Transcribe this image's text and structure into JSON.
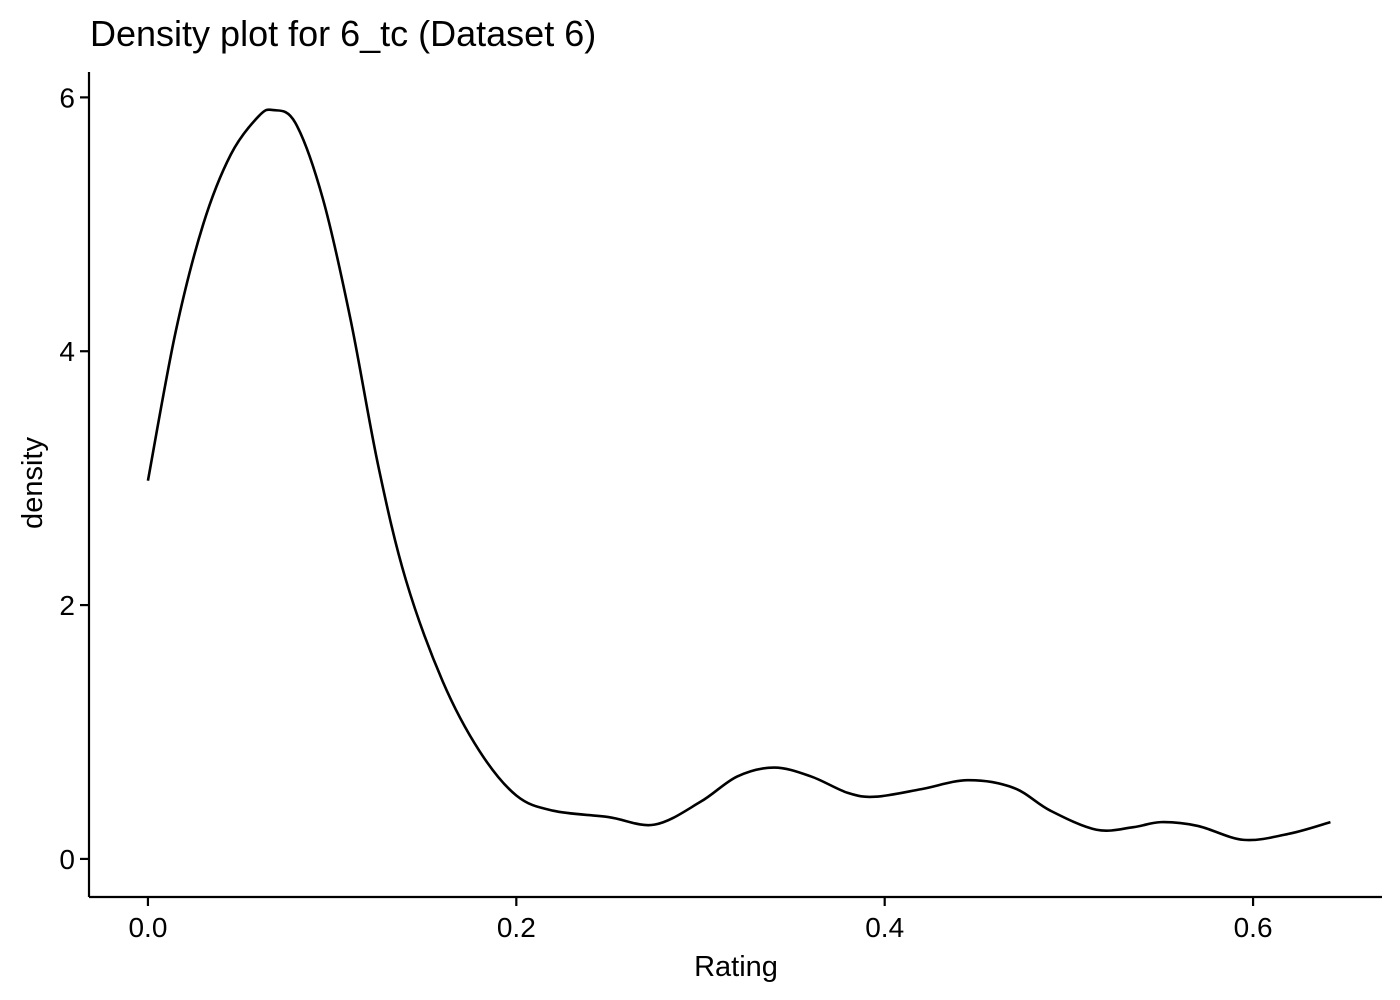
{
  "chart_data": {
    "type": "line",
    "title": "Density plot for 6_tc (Dataset 6)",
    "xlabel": "Rating",
    "ylabel": "density",
    "xlim": [
      -0.032,
      0.67
    ],
    "ylim": [
      -0.3,
      6.2
    ],
    "xticks": [
      0.0,
      0.2,
      0.4,
      0.6
    ],
    "xtick_labels": [
      "0.0",
      "0.2",
      "0.4",
      "0.6"
    ],
    "yticks": [
      0,
      2,
      4,
      6
    ],
    "ytick_labels": [
      "0",
      "2",
      "4",
      "6"
    ],
    "grid": false,
    "legend": "none",
    "line_color": "#000000",
    "series": [
      {
        "x": [
          0.0,
          0.015,
          0.03,
          0.045,
          0.06,
          0.068,
          0.08,
          0.095,
          0.11,
          0.125,
          0.14,
          0.16,
          0.18,
          0.2,
          0.22,
          0.25,
          0.275,
          0.3,
          0.32,
          0.34,
          0.36,
          0.38,
          0.395,
          0.42,
          0.445,
          0.47,
          0.49,
          0.515,
          0.535,
          0.55,
          0.57,
          0.595,
          0.62,
          0.642
        ],
        "y": [
          2.98,
          4.15,
          5.0,
          5.55,
          5.85,
          5.9,
          5.8,
          5.2,
          4.25,
          3.1,
          2.2,
          1.4,
          0.85,
          0.5,
          0.38,
          0.33,
          0.27,
          0.45,
          0.65,
          0.72,
          0.65,
          0.52,
          0.49,
          0.55,
          0.62,
          0.56,
          0.38,
          0.23,
          0.25,
          0.29,
          0.26,
          0.15,
          0.2,
          0.29
        ]
      }
    ]
  }
}
